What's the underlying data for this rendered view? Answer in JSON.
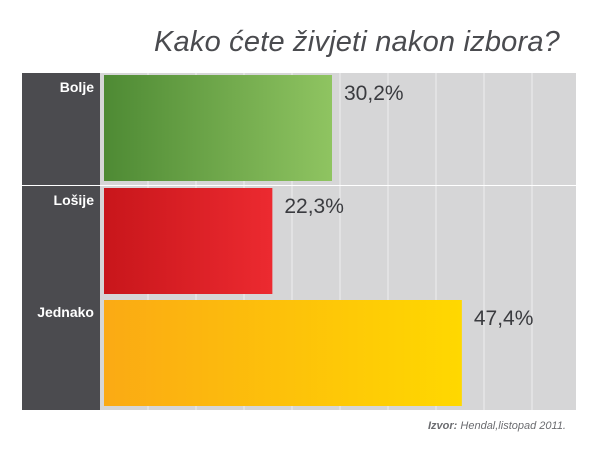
{
  "title": "Kako ćete živjeti nakon izbora?",
  "source": {
    "label": "Izvor:",
    "text": "Hendal,listopad 2011."
  },
  "chart_data": {
    "type": "bar",
    "orientation": "horizontal",
    "title": "Kako ćete živjeti nakon izbora?",
    "categories": [
      "Bolje",
      "Lošije",
      "Jednako"
    ],
    "values": [
      30.2,
      22.3,
      47.4
    ],
    "value_labels": [
      "30,2%",
      "22,3%",
      "47,4%"
    ],
    "unit": "%",
    "xlim": [
      0,
      100
    ],
    "grid": true,
    "legend": "none",
    "colors": {
      "bars": [
        [
          "#4e8a34",
          "#8fc461"
        ],
        [
          "#c8161b",
          "#ec2a30"
        ],
        [
          "#fbaa14",
          "#ffd800"
        ]
      ],
      "plot_background": "#d6d6d7",
      "label_panel": "#4b4b4f",
      "grid": "#efefef"
    }
  }
}
